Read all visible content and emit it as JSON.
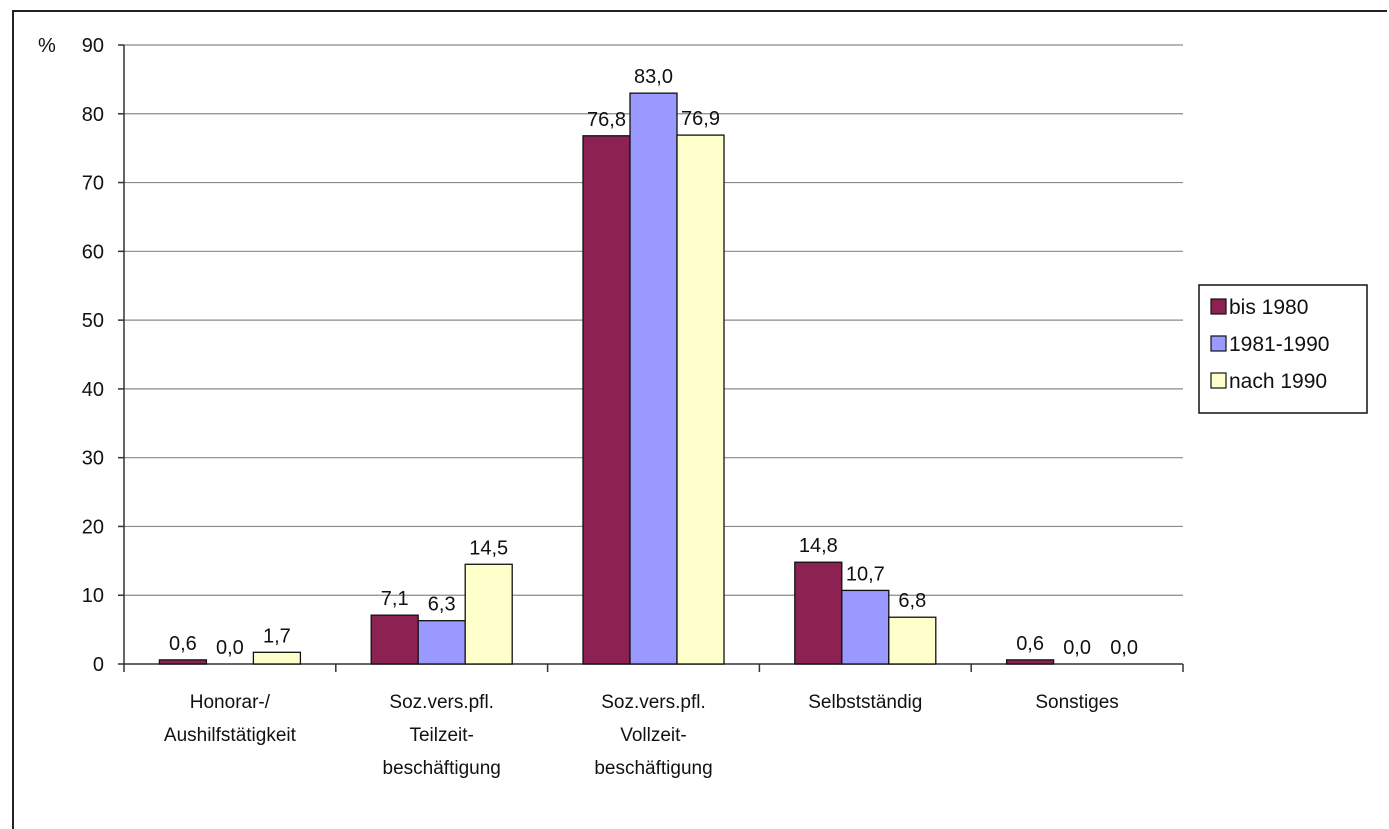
{
  "chart_data": {
    "type": "bar",
    "title": "",
    "xlabel": "",
    "ylabel": "%",
    "ylim": [
      0,
      90
    ],
    "yticks": [
      "0",
      "10",
      "20",
      "30",
      "40",
      "50",
      "60",
      "70",
      "80",
      "90"
    ],
    "grid": true,
    "legend_position": "right",
    "categories": [
      [
        "Honorar-/",
        "Aushilfstätigkeit"
      ],
      [
        "Soz.vers.pfl.",
        "Teilzeit-",
        "beschäftigung"
      ],
      [
        "Soz.vers.pfl.",
        "Vollzeit-",
        "beschäftigung"
      ],
      [
        "Selbstständig"
      ],
      [
        "Sonstiges"
      ]
    ],
    "series": [
      {
        "name": "bis 1980",
        "color": "#8B2252",
        "values": [
          0.6,
          7.1,
          76.8,
          14.8,
          0.6
        ],
        "labels": [
          "0,6",
          "7,1",
          "76,8",
          "14,8",
          "0,6"
        ]
      },
      {
        "name": "1981-1990",
        "color": "#9999FF",
        "values": [
          0.0,
          6.3,
          83.0,
          10.7,
          0.0
        ],
        "labels": [
          "0,0",
          "6,3",
          "83,0",
          "10,7",
          "0,0"
        ]
      },
      {
        "name": "nach 1990",
        "color": "#FFFFCC",
        "values": [
          1.7,
          14.5,
          76.9,
          6.8,
          0.0
        ],
        "labels": [
          "1,7",
          "14,5",
          "76,9",
          "6,8",
          "0,0"
        ]
      }
    ]
  }
}
